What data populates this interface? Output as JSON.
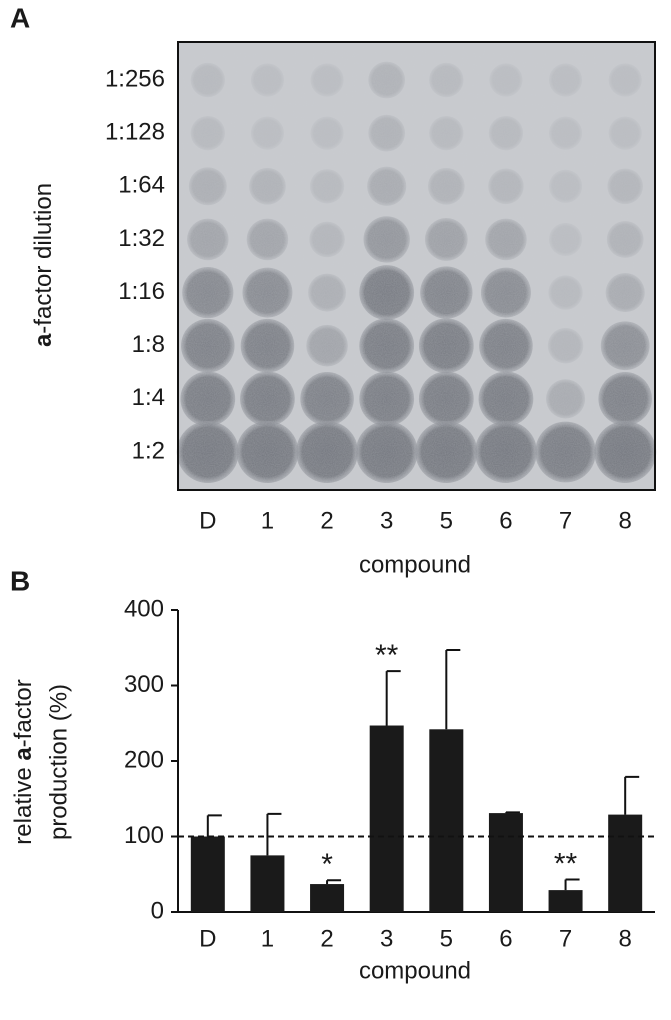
{
  "panel_a": {
    "panel_label": "A",
    "ylabel_parts": [
      "a",
      "-factor dilution"
    ],
    "dilutions": [
      "1:256",
      "1:128",
      "1:64",
      "1:32",
      "1:16",
      "1:8",
      "1:4",
      "1:2"
    ],
    "compounds": [
      "D",
      "1",
      "2",
      "3",
      "5",
      "6",
      "7",
      "8"
    ],
    "xlabel": "compound"
  },
  "chart_data": {
    "type": "bar",
    "panel_label": "B",
    "ylabel_line1_parts": [
      "relative ",
      "a",
      "-factor"
    ],
    "ylabel_line2": "production (%)",
    "xlabel": "compound",
    "categories": [
      "D",
      "1",
      "2",
      "3",
      "5",
      "6",
      "7",
      "8"
    ],
    "values": [
      100,
      75,
      37,
      247,
      242,
      131,
      29,
      129
    ],
    "errors": [
      28,
      55,
      5,
      72,
      105,
      1,
      14,
      50
    ],
    "significance": [
      null,
      null,
      "*",
      "**",
      null,
      null,
      "**",
      null
    ],
    "reference_line": 100,
    "color": "#1a1a1a",
    "ylim": [
      0,
      400
    ],
    "yticks": [
      0,
      100,
      200,
      300,
      400
    ]
  }
}
